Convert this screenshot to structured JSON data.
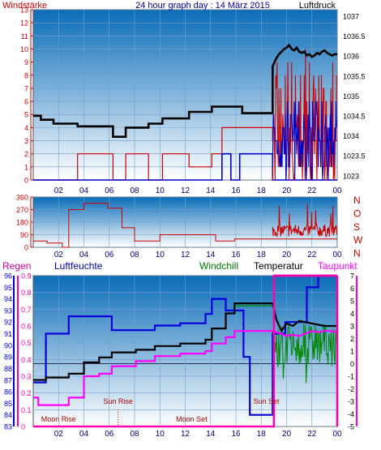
{
  "header": {
    "left_label": "Windstärke",
    "center_title": "24 hour graph day : 14 März 2015",
    "right_label": "Luftdruck"
  },
  "panel3_labels": {
    "regen": "Regen",
    "luftfeuchte": "Luftfeuchte",
    "windchill": "Windchill",
    "temperatur": "Temperatur",
    "taupunkt": "Taupunkt"
  },
  "colors": {
    "wind_axis": "#cc0000",
    "pressure": "#000000",
    "wind_avg": "#cc0000",
    "wind_gust": "#0000cc",
    "direction": "#cc0000",
    "humidity": "#0000dd",
    "temperature": "#000000",
    "windchill": "#008800",
    "dewpoint": "#ff00ff",
    "rain": "#ff00aa",
    "gradient_top": "#0a6cb8",
    "gradient_bottom": "#ffffff",
    "grid": "#6f9fd0"
  },
  "chart_data": [
    {
      "type": "line",
      "title": "24 hour graph day : 14 März 2015",
      "x_ticks": [
        "02",
        "04",
        "06",
        "08",
        "10",
        "12",
        "14",
        "16",
        "18",
        "20",
        "22",
        "00"
      ],
      "xlim": [
        0,
        24
      ],
      "left_axis": {
        "label": "Windstärke",
        "ticks": [
          "0",
          "1",
          "2",
          "3",
          "4",
          "5",
          "6",
          "7",
          "8",
          "9",
          "10",
          "11",
          "12",
          "13"
        ],
        "ylim": [
          0,
          13
        ]
      },
      "right_axis": {
        "label": "Luftdruck",
        "ticks": [
          "1023",
          "1023.5",
          "1034",
          "1034.5",
          "1035",
          "1035.5",
          "1036",
          "1036.5",
          "1037"
        ]
      },
      "series": [
        {
          "key": "pressure",
          "x": [
            0,
            0.6,
            0.6,
            1.6,
            1.6,
            3.5,
            3.5,
            6.3,
            6.3,
            7.3,
            7.3,
            9.1,
            9.1,
            10.2,
            10.2,
            12.3,
            12.3,
            14.1,
            14.1,
            16.5,
            16.5,
            18.9,
            18.9,
            19.2,
            19.4,
            19.6,
            19.8,
            20,
            20.2,
            20.4,
            20.6,
            20.8,
            21,
            21.2,
            21.4,
            21.6,
            21.8,
            22,
            22.2,
            22.4,
            22.6,
            22.8,
            23,
            23.2,
            23.4,
            23.6,
            23.8,
            24
          ],
          "y": [
            4.9,
            4.9,
            4.6,
            4.6,
            4.3,
            4.3,
            4.1,
            4.1,
            3.3,
            3.3,
            4.0,
            4.0,
            4.3,
            4.3,
            4.7,
            4.7,
            5.2,
            5.2,
            5.6,
            5.6,
            5.1,
            5.1,
            8.7,
            9.3,
            9.6,
            9.8,
            10.0,
            10.1,
            10.3,
            10.0,
            9.9,
            10.1,
            9.8,
            9.7,
            9.8,
            9.5,
            9.6,
            9.4,
            9.5,
            9.7,
            9.6,
            9.8,
            9.9,
            9.7,
            9.6,
            9.5,
            9.6,
            9.6
          ]
        },
        {
          "key": "wind_avg",
          "x": [
            0,
            3.5,
            3.5,
            6.3,
            6.3,
            7.3,
            7.3,
            9.1,
            9.1,
            10.2,
            10.2,
            12.3,
            12.3,
            14.1,
            14.1,
            14.9,
            14.9,
            18.9,
            18.9,
            24
          ],
          "y": [
            0,
            0,
            2,
            2,
            0,
            0,
            2,
            2,
            0,
            0,
            2,
            2,
            1,
            1,
            2,
            2,
            4,
            4,
            3,
            3
          ]
        },
        {
          "key": "wind_gust",
          "x": [
            0,
            14.9,
            14.9,
            15.6,
            15.6,
            16.3,
            16.3,
            18.9,
            18.9,
            24
          ],
          "y": [
            0,
            0,
            2,
            2,
            0,
            0,
            2,
            2,
            0,
            0
          ]
        }
      ],
      "gusty_after_hour": 18.9,
      "wind_max": 13,
      "gust_max": 8
    },
    {
      "type": "line",
      "title": "",
      "x_ticks": [
        "02",
        "04",
        "06",
        "08",
        "10",
        "12",
        "14",
        "16",
        "18",
        "20",
        "22",
        "00"
      ],
      "xlim": [
        0,
        24
      ],
      "left_axis": {
        "ticks": [
          "0",
          "90",
          "180",
          "270",
          "360"
        ],
        "ylim": [
          0,
          360
        ]
      },
      "right_axis": {
        "ticks": [
          "N",
          "W",
          "S",
          "O",
          "N"
        ]
      },
      "series": [
        {
          "key": "direction",
          "x": [
            0,
            1.1,
            1.1,
            2.3,
            2.3,
            2.8,
            2.8,
            4.0,
            4.0,
            5.9,
            5.9,
            7.0,
            7.0,
            8.0,
            8.0,
            10.0,
            10.0,
            11.4,
            11.4,
            14.4,
            14.4,
            15.9,
            15.9,
            18.9,
            18.9,
            24
          ],
          "y": [
            45,
            45,
            30,
            30,
            0,
            0,
            270,
            270,
            315,
            315,
            280,
            280,
            140,
            140,
            45,
            45,
            90,
            90,
            90,
            90,
            45,
            45,
            60,
            60,
            60,
            60
          ]
        }
      ],
      "noisy_after_hour": 18.9,
      "noisy_center": 120
    },
    {
      "type": "line",
      "title": "",
      "x_ticks": [
        "02",
        "04",
        "06",
        "08",
        "10",
        "12",
        "14",
        "16",
        "18",
        "20",
        "22",
        "00"
      ],
      "xlim": [
        0,
        24
      ],
      "axis_regen": {
        "label": "Regen",
        "ticks": [
          "0",
          "0.1",
          "0.2",
          "0.3",
          "0.4",
          "0.5",
          "0.6",
          "0.7",
          "0.8",
          "0.9"
        ],
        "ylim": [
          0,
          0.9
        ]
      },
      "axis_humidity": {
        "label": "Luftfeuchte",
        "ticks": [
          "83",
          "84",
          "85",
          "86",
          "87",
          "88",
          "89",
          "90",
          "91",
          "92",
          "93",
          "94",
          "95",
          "96"
        ],
        "ylim": [
          83,
          96
        ]
      },
      "axis_temperature": {
        "label": "Temperatur",
        "ticks": [
          "-5",
          "-4",
          "-3",
          "-2",
          "-1",
          "0",
          "1",
          "2",
          "3",
          "4",
          "5",
          "6",
          "7"
        ],
        "ylim": [
          -5,
          7
        ]
      },
      "annotations": [
        {
          "text": "Moon Rise",
          "x": 2
        },
        {
          "text": "Sun Rise",
          "x": 6.7
        },
        {
          "text": "Moon Set",
          "x": 12.5
        },
        {
          "text": "Sun Set",
          "x": 18.4
        }
      ],
      "series": [
        {
          "key": "humidity",
          "axis": "humidity",
          "x": [
            0,
            0.4,
            0.4,
            1,
            1,
            2.8,
            2.8,
            6.2,
            6.2,
            9.6,
            9.6,
            11.6,
            11.6,
            13.6,
            13.6,
            14.1,
            14.1,
            15.2,
            15.2,
            16.6,
            16.6,
            17.1,
            17.1,
            18.9,
            18.9,
            19.9,
            19.9,
            21.6,
            21.6,
            22.5,
            22.5,
            24
          ],
          "y": [
            86.8,
            86.8,
            86.8,
            86.8,
            91,
            91,
            92.5,
            92.5,
            91.3,
            91.3,
            91.7,
            91.7,
            91.9,
            91.9,
            92.7,
            92.7,
            94,
            94,
            93,
            93,
            89,
            89,
            84,
            84,
            91,
            91,
            92,
            92,
            95,
            95,
            96,
            96
          ]
        },
        {
          "key": "temperature",
          "axis": "temperature",
          "x": [
            0,
            0.4,
            0.4,
            1,
            1,
            2.8,
            2.8,
            4,
            4,
            5.2,
            5.2,
            6.2,
            6.2,
            8.1,
            8.1,
            9.6,
            9.6,
            11.6,
            11.6,
            13.6,
            13.6,
            14.1,
            14.1,
            15.2,
            15.2,
            15.9,
            15.9,
            18.9,
            19.2,
            19.6,
            20,
            20.5,
            21,
            21.5,
            22,
            22.5,
            23,
            23.5,
            24
          ],
          "y": [
            -1.3,
            -1.3,
            -1.3,
            -1.3,
            -1.1,
            -1.1,
            -0.8,
            -0.8,
            0.1,
            0.1,
            0.5,
            0.5,
            0.9,
            0.9,
            1.1,
            1.1,
            1.4,
            1.4,
            1.6,
            1.6,
            1.9,
            1.9,
            2.8,
            2.8,
            4.0,
            4.0,
            4.8,
            4.8,
            3.5,
            2.6,
            3.2,
            3.0,
            3.4,
            3.3,
            3.2,
            3.1,
            3.0,
            3.0,
            3.0
          ]
        },
        {
          "key": "windchill",
          "axis": "temperature",
          "x": [
            0,
            0.4,
            0.4,
            1,
            1,
            2.8,
            2.8,
            4,
            4,
            5.2,
            5.2,
            6.2,
            6.2,
            8.1,
            8.1,
            9.6,
            9.6,
            11.6,
            11.6,
            13.6,
            13.6,
            14.1,
            14.1,
            15.2,
            15.2,
            15.9,
            15.9,
            18.9
          ],
          "y": [
            -1.3,
            -1.3,
            -1.3,
            -1.3,
            -1.1,
            -1.1,
            -0.8,
            -0.8,
            0.1,
            0.1,
            0.5,
            0.5,
            0.9,
            0.9,
            1.1,
            1.1,
            1.4,
            1.4,
            1.6,
            1.6,
            1.9,
            1.9,
            2.8,
            2.8,
            4.0,
            4.0,
            4.6,
            4.6
          ]
        },
        {
          "key": "dewpoint",
          "axis": "temperature",
          "x": [
            0,
            0.4,
            0.4,
            1,
            1,
            2.8,
            2.8,
            4,
            4,
            5.2,
            5.2,
            6.2,
            6.2,
            8.1,
            8.1,
            9.6,
            9.6,
            11.6,
            11.6,
            13.6,
            13.6,
            14.1,
            14.1,
            15.2,
            15.2,
            15.9,
            15.9,
            18.9,
            19.5,
            20,
            20.5,
            21,
            21.5,
            22,
            22.5,
            23,
            23.5,
            24
          ],
          "y": [
            -2.7,
            -2.7,
            -3.3,
            -3.3,
            -3.3,
            -3.3,
            -2.7,
            -2.7,
            -1.0,
            -1.0,
            -0.8,
            -0.8,
            -0.2,
            -0.2,
            0.2,
            0.2,
            0.6,
            0.6,
            0.8,
            0.8,
            1.0,
            1.0,
            1.6,
            1.6,
            2.1,
            2.1,
            2.6,
            2.6,
            2.4,
            2.2,
            2.3,
            2.2,
            2.4,
            2.6,
            2.5,
            2.6,
            2.6,
            2.5
          ]
        },
        {
          "key": "rain",
          "axis": "regen",
          "x": [
            0,
            19,
            19,
            24
          ],
          "y": [
            0,
            0,
            0.9,
            0.9
          ]
        }
      ],
      "windchill_noisy_after_hour": 18.9
    }
  ]
}
